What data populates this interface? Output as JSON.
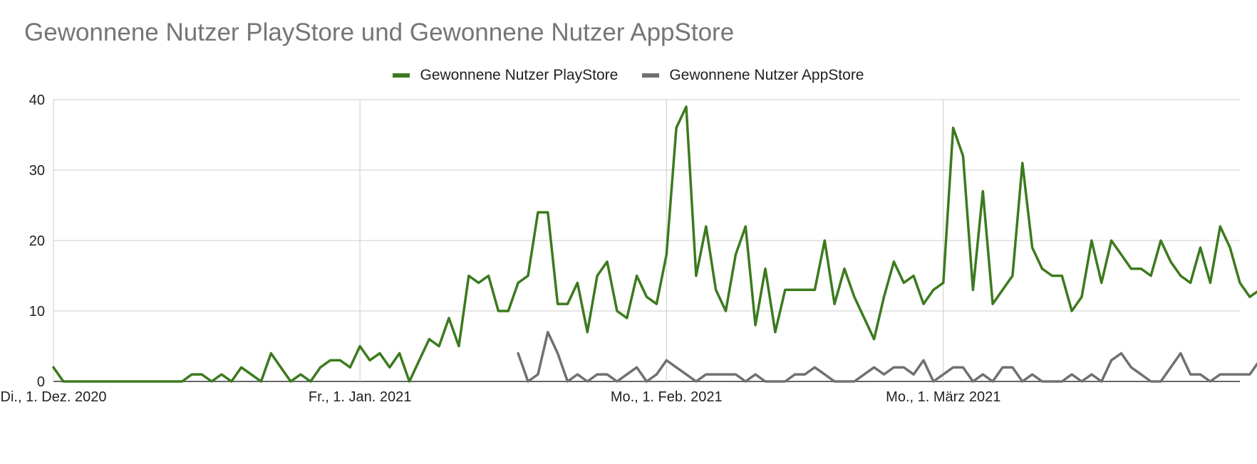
{
  "chart_data": {
    "type": "line",
    "title": "Gewonnene Nutzer PlayStore und Gewonnene Nutzer AppStore",
    "xlabel": "",
    "ylabel": "",
    "ylim": [
      0,
      40
    ],
    "yticks": [
      "0",
      "10",
      "20",
      "30",
      "40"
    ],
    "yvalues": [
      0,
      10,
      20,
      30,
      40
    ],
    "xlim": [
      0,
      120
    ],
    "xticks": [
      {
        "day": 0,
        "label": "Di., 1. Dez. 2020"
      },
      {
        "day": 31,
        "label": "Fr., 1. Jan. 2021"
      },
      {
        "day": 62,
        "label": "Mo., 1. Feb. 2021"
      },
      {
        "day": 90,
        "label": "Mo., 1. März 2021"
      }
    ],
    "legend_position": "top-center",
    "grid": true,
    "series": [
      {
        "name": "Gewonnene Nutzer PlayStore",
        "color": "#3c7a1e",
        "start_day": 0,
        "values": [
          2,
          0,
          0,
          0,
          0,
          0,
          0,
          0,
          0,
          0,
          0,
          0,
          0,
          0,
          1,
          1,
          0,
          1,
          0,
          2,
          1,
          0,
          4,
          2,
          0,
          1,
          0,
          2,
          3,
          3,
          2,
          5,
          3,
          4,
          2,
          4,
          0,
          3,
          6,
          5,
          9,
          5,
          15,
          14,
          15,
          10,
          10,
          14,
          15,
          24,
          24,
          11,
          11,
          14,
          7,
          15,
          17,
          10,
          9,
          15,
          12,
          11,
          18,
          36,
          39,
          15,
          22,
          13,
          10,
          18,
          22,
          8,
          16,
          7,
          13,
          13,
          13,
          13,
          20,
          11,
          16,
          12,
          9,
          6,
          12,
          17,
          14,
          15,
          11,
          13,
          14,
          36,
          32,
          13,
          27,
          11,
          13,
          15,
          31,
          19,
          16,
          15,
          15,
          10,
          12,
          20,
          14,
          20,
          18,
          16,
          16,
          15,
          20,
          17,
          15,
          14,
          19,
          14,
          22,
          19,
          14,
          12,
          13
        ]
      },
      {
        "name": "Gewonnene Nutzer AppStore",
        "color": "#707070",
        "start_day": 47,
        "values": [
          4,
          0,
          1,
          7,
          4,
          0,
          1,
          0,
          1,
          1,
          0,
          1,
          2,
          0,
          1,
          3,
          2,
          1,
          0,
          1,
          1,
          1,
          1,
          0,
          1,
          0,
          0,
          0,
          1,
          1,
          2,
          1,
          0,
          0,
          0,
          1,
          2,
          1,
          2,
          2,
          1,
          3,
          0,
          1,
          2,
          2,
          0,
          1,
          0,
          2,
          2,
          0,
          1,
          0,
          0,
          0,
          1,
          0,
          1,
          0,
          3,
          4,
          2,
          1,
          0,
          0,
          2,
          4,
          1,
          1,
          0,
          1,
          1,
          1,
          1,
          3
        ]
      }
    ]
  }
}
